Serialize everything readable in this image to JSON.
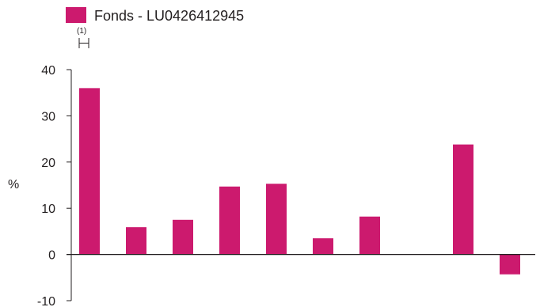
{
  "chart_data": {
    "type": "bar",
    "ylabel": "%",
    "ylim": [
      -10,
      40
    ],
    "yticks": [
      40,
      30,
      20,
      10,
      0,
      -10
    ],
    "grid": false,
    "legend_position": "top-left",
    "series": [
      {
        "name": "Fonds - LU0426412945",
        "color": "#cc1a6e",
        "values": [
          36,
          5.9,
          7.5,
          14.7,
          15.3,
          3.5,
          8.2,
          null,
          23.8,
          -4.3
        ]
      }
    ],
    "annotations": [
      "(1)"
    ]
  }
}
